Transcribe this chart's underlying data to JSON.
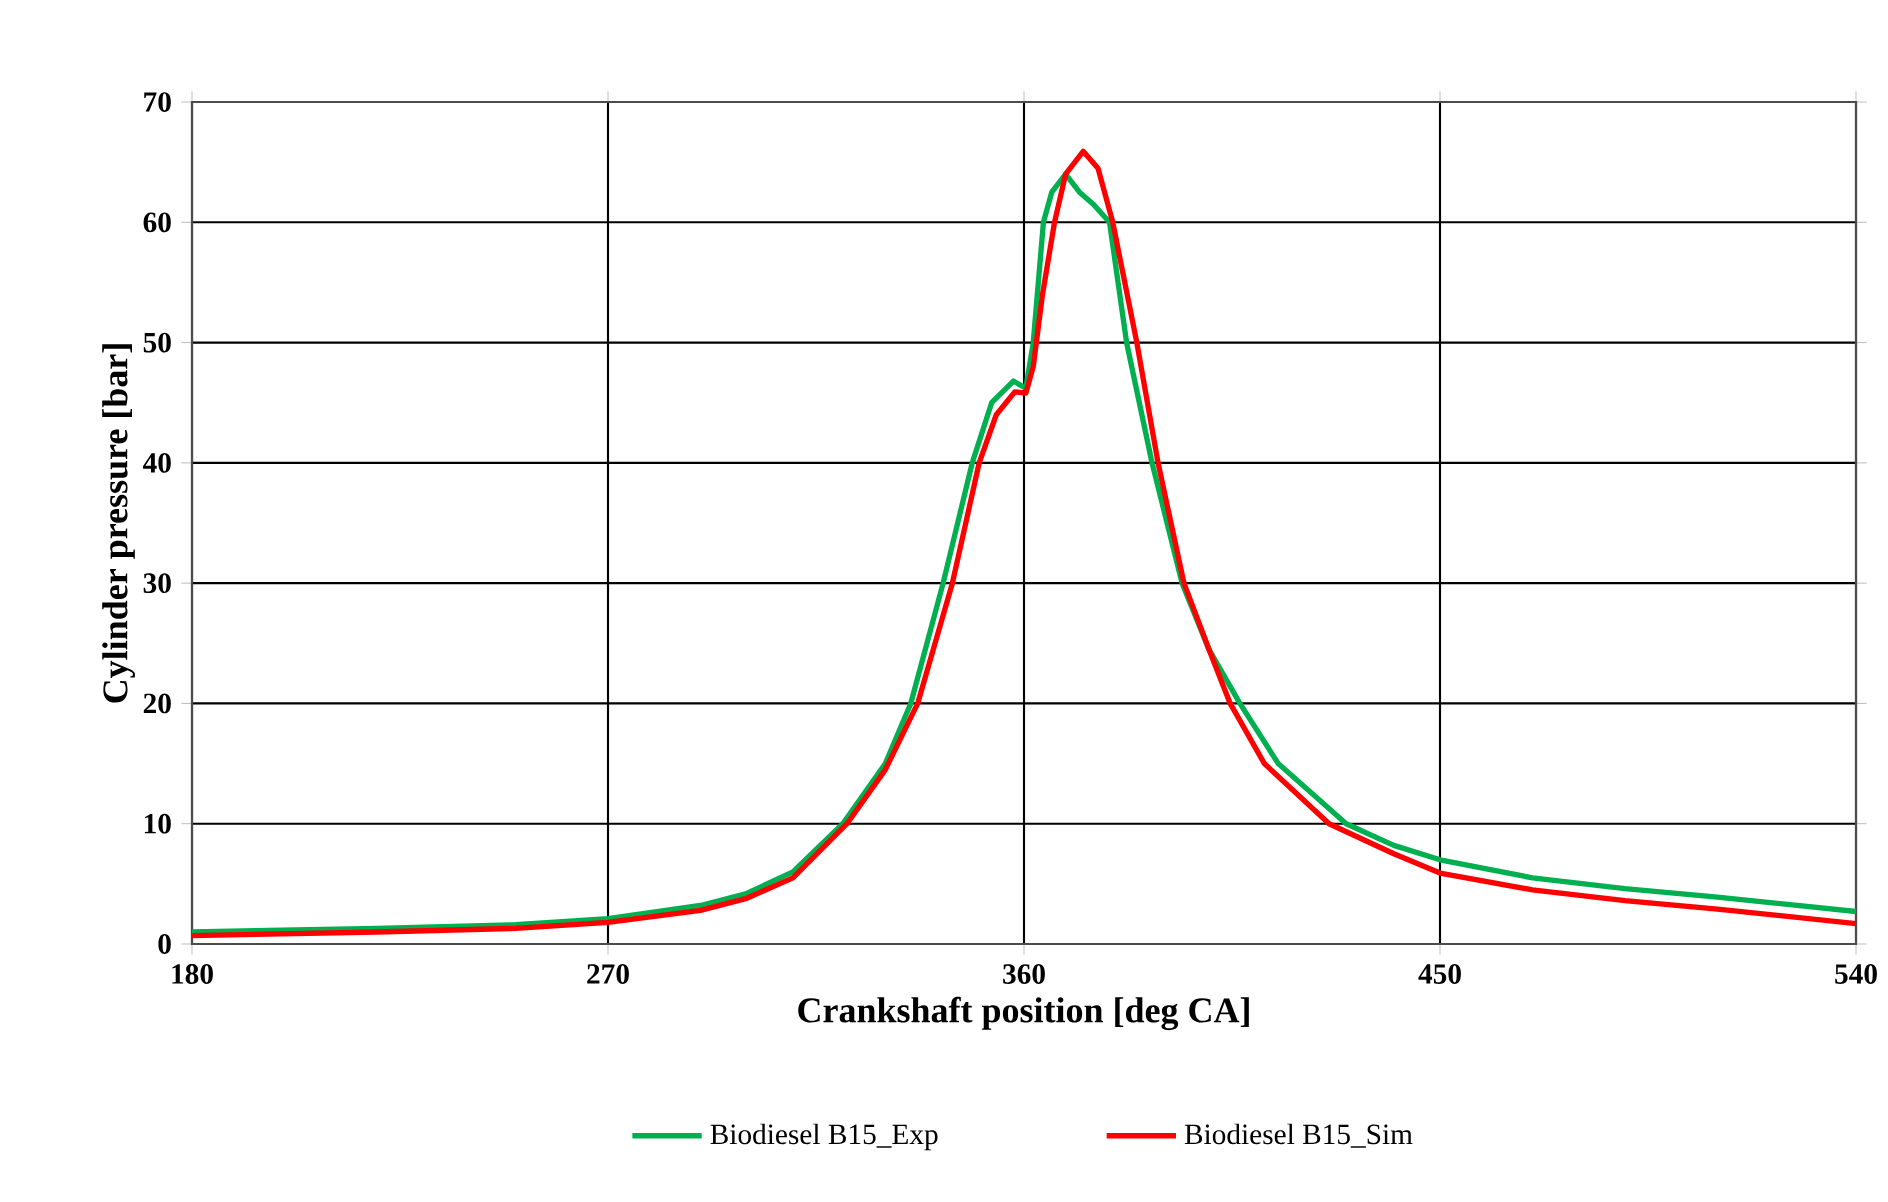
{
  "chart_data": {
    "type": "line",
    "xlabel": "Crankshaft position [deg CA]",
    "ylabel": "Cylinder pressure [bar]",
    "xlim": [
      180,
      540
    ],
    "xticks": [
      180,
      270,
      360,
      450,
      540
    ],
    "ylim": [
      0,
      70
    ],
    "yticks": [
      0,
      10,
      20,
      30,
      40,
      50,
      60,
      70
    ],
    "grid": true,
    "legend": "bottom",
    "marker": "none",
    "line_style": "solid",
    "series": [
      {
        "name": "Biodiesel B15_Exp",
        "color": "#00b050",
        "x": [
          180,
          220,
          250,
          270,
          290,
          300,
          310,
          320.8,
          330,
          335.5,
          342.5,
          348.8,
          353,
          357.7,
          360.4,
          362,
          364.2,
          366,
          369,
          372,
          375,
          378.5,
          382.2,
          387.7,
          394.2,
          400,
          406.7,
          415,
          429.7,
          440,
          450,
          470,
          490,
          510,
          540
        ],
        "values": [
          1.0,
          1.3,
          1.6,
          2.1,
          3.2,
          4.2,
          6.0,
          10,
          15,
          20,
          30,
          40,
          45,
          46.8,
          46.2,
          50,
          60,
          62.5,
          64,
          62.5,
          61.5,
          60,
          50,
          40,
          30,
          24.5,
          20,
          15,
          10,
          8.2,
          7.0,
          5.5,
          4.6,
          3.9,
          2.7
        ]
      },
      {
        "name": "Biodiesel B15_Sim",
        "color": "#ff0000",
        "x": [
          180,
          220,
          250,
          270,
          290,
          300,
          310,
          321.7,
          330,
          337,
          344.5,
          350.3,
          354,
          358,
          360.4,
          362,
          364,
          366.6,
          369,
          372.8,
          376,
          379.2,
          384.4,
          389,
          394.6,
          400,
          404.6,
          412,
          426,
          440,
          450,
          470,
          490,
          510,
          540
        ],
        "values": [
          0.7,
          1.0,
          1.3,
          1.8,
          2.8,
          3.8,
          5.5,
          10,
          14.5,
          20,
          30,
          40,
          44,
          45.9,
          45.8,
          48,
          54,
          60,
          64,
          65.9,
          64.5,
          60,
          50,
          40,
          30,
          24.5,
          20,
          15,
          10,
          7.5,
          5.9,
          4.5,
          3.6,
          2.9,
          1.7
        ]
      }
    ]
  }
}
